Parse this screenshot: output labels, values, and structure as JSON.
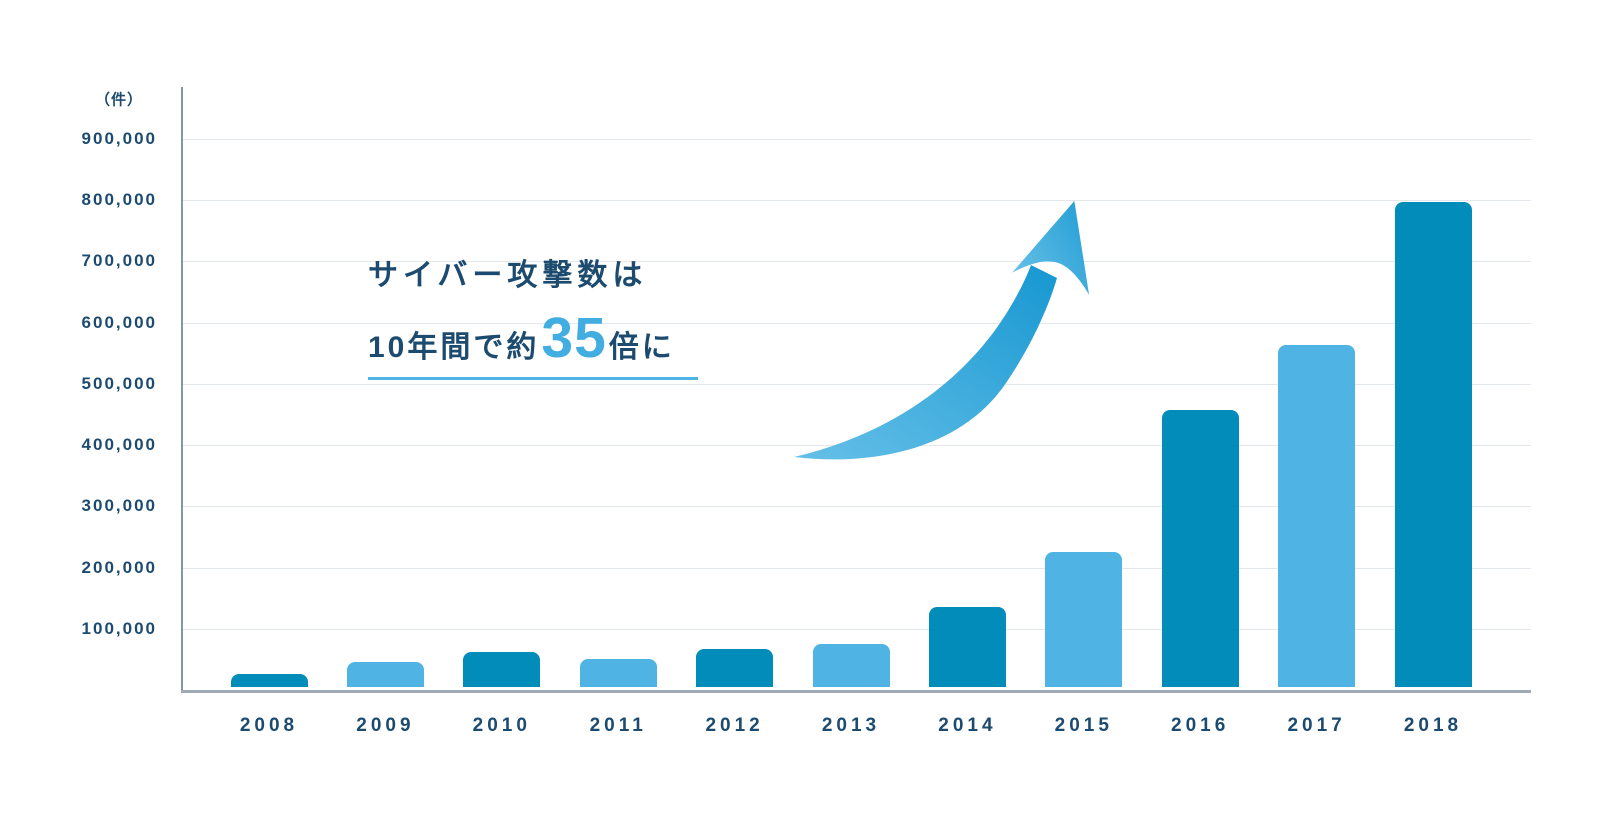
{
  "chart_data": {
    "type": "bar",
    "title": "サイバー攻撃数は10年間で約35倍に",
    "unit_label": "（件）",
    "xlabel": "",
    "ylabel": "件",
    "categories": [
      "2008",
      "2009",
      "2010",
      "2011",
      "2012",
      "2013",
      "2014",
      "2015",
      "2016",
      "2017",
      "2018"
    ],
    "values": [
      21000,
      41000,
      57000,
      45000,
      62000,
      71000,
      131000,
      220000,
      452000,
      558000,
      792000
    ],
    "ylim": [
      0,
      980000
    ],
    "y_ticks": [
      {
        "value": 100000,
        "label": "100,000"
      },
      {
        "value": 200000,
        "label": "200,000"
      },
      {
        "value": 300000,
        "label": "300,000"
      },
      {
        "value": 400000,
        "label": "400,000"
      },
      {
        "value": 500000,
        "label": "500,000"
      },
      {
        "value": 600000,
        "label": "600,000"
      },
      {
        "value": 700000,
        "label": "700,000"
      },
      {
        "value": 800000,
        "label": "800,000"
      },
      {
        "value": 900000,
        "label": "900,000"
      }
    ],
    "grid": true,
    "legend": "none",
    "bar_color_dark": "#028CBA",
    "bar_color_light": "#4FB3E3",
    "bar_pattern": "alternating dark/light starting dark at 2008"
  },
  "annotation": {
    "line1": "サイバー攻撃数は",
    "line2_prefix": "10年間で約",
    "line2_highlight": "35",
    "line2_suffix": "倍に"
  },
  "colors": {
    "text_navy": "#1C4B6F",
    "accent_blue": "#41ADE1",
    "underline_blue": "#4FB3E3",
    "gridline": "#E3E8EC",
    "baseline": "#9FAAB4",
    "axis": "#8496A4",
    "arrow_gradient_from": "#66C0E8",
    "arrow_gradient_to": "#1B99D2"
  }
}
